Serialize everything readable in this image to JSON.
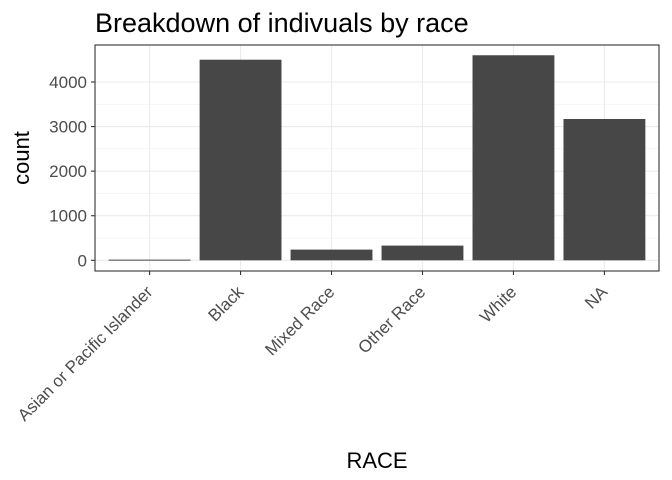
{
  "chart_data": {
    "type": "bar",
    "title": "Breakdown of indivuals by race",
    "xlabel": "RACE",
    "ylabel": "count",
    "categories": [
      "Asian or Pacific Islander",
      "Black",
      "Mixed Race",
      "Other Race",
      "White",
      "NA"
    ],
    "values": [
      15,
      4500,
      240,
      330,
      4600,
      3170
    ],
    "ylim": [
      -240,
      4830
    ],
    "yticks": [
      0,
      1000,
      2000,
      3000,
      4000
    ],
    "grid": true,
    "bar_color": "#474747",
    "grid_color": "#ebebeb"
  }
}
